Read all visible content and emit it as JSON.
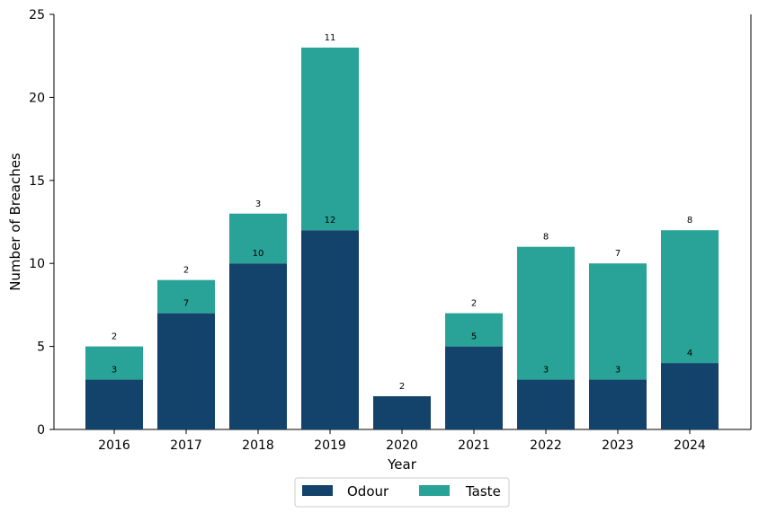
{
  "chart_data": {
    "type": "bar",
    "stacked": true,
    "categories": [
      "2016",
      "2017",
      "2018",
      "2019",
      "2020",
      "2021",
      "2022",
      "2023",
      "2024"
    ],
    "series": [
      {
        "name": "Odour",
        "color": "#13426b",
        "values": [
          3,
          7,
          10,
          12,
          2,
          5,
          3,
          3,
          4
        ]
      },
      {
        "name": "Taste",
        "color": "#29a397",
        "values": [
          2,
          2,
          3,
          11,
          0,
          2,
          8,
          7,
          8
        ]
      }
    ],
    "title": "",
    "xlabel": "Year",
    "ylabel": "Number of Breaches",
    "ylim": [
      0,
      25
    ],
    "yticks": [
      "0",
      "5",
      "10",
      "15",
      "20",
      "25"
    ],
    "grid": false,
    "legend_placement": "bottom-center",
    "data_labels": true
  }
}
